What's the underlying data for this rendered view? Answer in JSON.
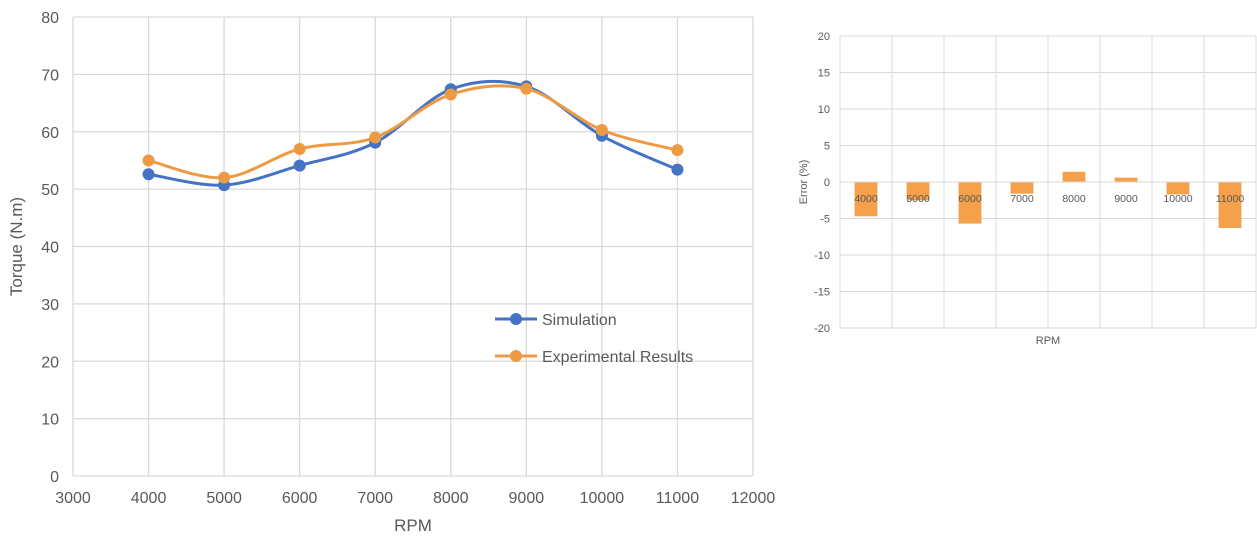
{
  "chart_data": [
    {
      "type": "line",
      "title": "",
      "xlabel": "RPM",
      "ylabel": "Torque (N.m)",
      "xlim": [
        3000,
        12000
      ],
      "ylim": [
        0,
        80
      ],
      "x_ticks": [
        "3000",
        "4000",
        "5000",
        "6000",
        "7000",
        "8000",
        "9000",
        "10000",
        "11000",
        "12000"
      ],
      "y_ticks": [
        "0",
        "10",
        "20",
        "30",
        "40",
        "50",
        "60",
        "70",
        "80"
      ],
      "grid": true,
      "legend_position": "center-right",
      "x": [
        4000,
        5000,
        6000,
        7000,
        8000,
        9000,
        10000,
        11000
      ],
      "series": [
        {
          "name": "Simulation",
          "color": "#4472c4",
          "values": [
            52.6,
            50.7,
            54.1,
            58.1,
            67.4,
            67.9,
            59.3,
            53.4
          ]
        },
        {
          "name": "Experimental Results",
          "color": "#ed9a45",
          "values": [
            55.0,
            52.0,
            57.0,
            59.0,
            66.5,
            67.5,
            60.3,
            56.8
          ]
        }
      ]
    },
    {
      "type": "bar",
      "title": "",
      "xlabel": "RPM",
      "ylabel": "Error (%)",
      "ylim": [
        -20,
        20
      ],
      "y_ticks": [
        "20",
        "15",
        "10",
        "5",
        "0",
        "-5",
        "-10",
        "-15",
        "-20"
      ],
      "grid": true,
      "color": "#f5a04a",
      "categories": [
        "4000",
        "5000",
        "6000",
        "7000",
        "8000",
        "9000",
        "10000",
        "11000"
      ],
      "values": [
        -4.7,
        -2.5,
        -5.7,
        -1.6,
        1.4,
        0.6,
        -1.7,
        -6.3
      ]
    }
  ]
}
